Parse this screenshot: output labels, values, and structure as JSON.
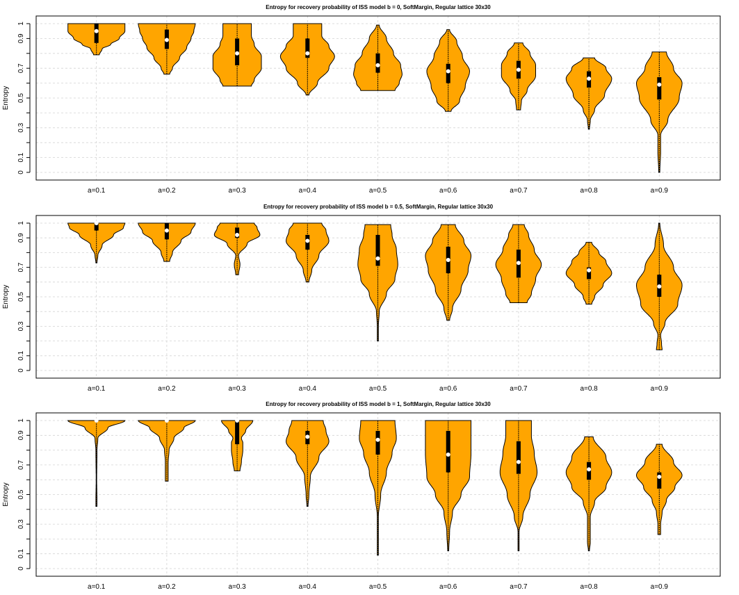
{
  "colors": {
    "violin_fill": "#FFA500",
    "outline": "#000000",
    "grid": "#d3d3d3",
    "median": "#ffffff"
  },
  "chart_data": [
    {
      "type": "violin",
      "title": "Entropy for recovery probability of ISS model b = 0, SoftMargin, Regular lattice 30x30",
      "ylabel": "Entropy",
      "categories": [
        "a=0.1",
        "a=0.2",
        "a=0.3",
        "a=0.4",
        "a=0.5",
        "a=0.6",
        "a=0.7",
        "a=0.8",
        "a=0.9"
      ],
      "ylim": [
        0,
        1
      ],
      "yticks": [
        "0",
        "0.1",
        "0.3",
        "0.5",
        "0.7",
        "0.9",
        "1"
      ],
      "grid": true,
      "series": [
        {
          "min": 0.79,
          "max": 1.0,
          "q1": 0.87,
          "median": 0.95,
          "q3": 1.0,
          "w": [
            [
              0.79,
              0.1
            ],
            [
              0.83,
              0.2
            ],
            [
              0.86,
              0.5
            ],
            [
              0.9,
              0.8
            ],
            [
              0.95,
              1.0
            ],
            [
              1.0,
              1.0
            ]
          ]
        },
        {
          "min": 0.66,
          "max": 1.0,
          "q1": 0.83,
          "median": 0.89,
          "q3": 0.96,
          "w": [
            [
              0.66,
              0.1
            ],
            [
              0.7,
              0.2
            ],
            [
              0.77,
              0.45
            ],
            [
              0.84,
              0.7
            ],
            [
              0.9,
              0.85
            ],
            [
              0.95,
              0.95
            ],
            [
              1.0,
              1.0
            ]
          ]
        },
        {
          "min": 0.58,
          "max": 1.0,
          "q1": 0.72,
          "median": 0.8,
          "q3": 0.9,
          "w": [
            [
              0.58,
              0.5
            ],
            [
              0.62,
              0.6
            ],
            [
              0.7,
              0.85
            ],
            [
              0.78,
              0.85
            ],
            [
              0.86,
              0.6
            ],
            [
              0.92,
              0.5
            ],
            [
              1.0,
              0.5
            ]
          ]
        },
        {
          "min": 0.52,
          "max": 1.0,
          "q1": 0.77,
          "median": 0.8,
          "q3": 0.9,
          "w": [
            [
              0.52,
              0.05
            ],
            [
              0.6,
              0.35
            ],
            [
              0.7,
              0.75
            ],
            [
              0.78,
              0.95
            ],
            [
              0.85,
              0.75
            ],
            [
              0.92,
              0.5
            ],
            [
              1.0,
              0.5
            ]
          ]
        },
        {
          "min": 0.55,
          "max": 0.99,
          "q1": 0.67,
          "median": 0.72,
          "q3": 0.8,
          "w": [
            [
              0.55,
              0.6
            ],
            [
              0.6,
              0.75
            ],
            [
              0.66,
              0.85
            ],
            [
              0.72,
              0.8
            ],
            [
              0.8,
              0.55
            ],
            [
              0.9,
              0.3
            ],
            [
              0.99,
              0.05
            ]
          ]
        },
        {
          "min": 0.41,
          "max": 0.96,
          "q1": 0.6,
          "median": 0.68,
          "q3": 0.73,
          "w": [
            [
              0.41,
              0.1
            ],
            [
              0.48,
              0.4
            ],
            [
              0.58,
              0.6
            ],
            [
              0.68,
              0.75
            ],
            [
              0.78,
              0.5
            ],
            [
              0.88,
              0.3
            ],
            [
              0.96,
              0.05
            ]
          ]
        },
        {
          "min": 0.42,
          "max": 0.87,
          "q1": 0.63,
          "median": 0.69,
          "q3": 0.75,
          "w": [
            [
              0.42,
              0.07
            ],
            [
              0.48,
              0.1
            ],
            [
              0.55,
              0.3
            ],
            [
              0.65,
              0.6
            ],
            [
              0.72,
              0.6
            ],
            [
              0.8,
              0.4
            ],
            [
              0.87,
              0.15
            ]
          ]
        },
        {
          "min": 0.29,
          "max": 0.77,
          "q1": 0.57,
          "median": 0.63,
          "q3": 0.68,
          "w": [
            [
              0.29,
              0.02
            ],
            [
              0.35,
              0.05
            ],
            [
              0.42,
              0.2
            ],
            [
              0.52,
              0.55
            ],
            [
              0.63,
              0.8
            ],
            [
              0.7,
              0.6
            ],
            [
              0.77,
              0.2
            ]
          ]
        },
        {
          "min": 0.0,
          "max": 0.81,
          "q1": 0.49,
          "median": 0.59,
          "q3": 0.64,
          "w": [
            [
              0.0,
              0.02
            ],
            [
              0.15,
              0.05
            ],
            [
              0.25,
              0.05
            ],
            [
              0.35,
              0.3
            ],
            [
              0.5,
              0.7
            ],
            [
              0.6,
              0.8
            ],
            [
              0.7,
              0.5
            ],
            [
              0.81,
              0.25
            ]
          ]
        }
      ]
    },
    {
      "type": "violin",
      "title": "Entropy for recovery probability of ISS model b = 0.5, SoftMargin, Regular lattice 30x30",
      "ylabel": "Entropy",
      "categories": [
        "a=0.1",
        "a=0.2",
        "a=0.3",
        "a=0.4",
        "a=0.5",
        "a=0.6",
        "a=0.7",
        "a=0.8",
        "a=0.9"
      ],
      "ylim": [
        0,
        1
      ],
      "yticks": [
        "0",
        "0.1",
        "0.3",
        "0.5",
        "0.7",
        "0.9",
        "1"
      ],
      "grid": true,
      "series": [
        {
          "min": 0.73,
          "max": 1.0,
          "q1": 0.95,
          "median": 1.0,
          "q3": 1.0,
          "w": [
            [
              0.73,
              0.02
            ],
            [
              0.78,
              0.05
            ],
            [
              0.85,
              0.2
            ],
            [
              0.92,
              0.6
            ],
            [
              0.97,
              0.95
            ],
            [
              1.0,
              1.0
            ]
          ]
        },
        {
          "min": 0.74,
          "max": 1.0,
          "q1": 0.89,
          "median": 0.95,
          "q3": 1.0,
          "w": [
            [
              0.74,
              0.1
            ],
            [
              0.8,
              0.2
            ],
            [
              0.88,
              0.5
            ],
            [
              0.94,
              0.85
            ],
            [
              1.0,
              1.0
            ]
          ]
        },
        {
          "min": 0.65,
          "max": 1.0,
          "q1": 0.9,
          "median": 0.92,
          "q3": 0.97,
          "w": [
            [
              0.65,
              0.05
            ],
            [
              0.72,
              0.1
            ],
            [
              0.78,
              0.05
            ],
            [
              0.86,
              0.35
            ],
            [
              0.92,
              0.8
            ],
            [
              0.97,
              0.7
            ],
            [
              1.0,
              0.6
            ]
          ]
        },
        {
          "min": 0.6,
          "max": 1.0,
          "q1": 0.82,
          "median": 0.88,
          "q3": 0.92,
          "w": [
            [
              0.6,
              0.05
            ],
            [
              0.68,
              0.15
            ],
            [
              0.78,
              0.4
            ],
            [
              0.88,
              0.75
            ],
            [
              0.95,
              0.65
            ],
            [
              1.0,
              0.5
            ]
          ]
        },
        {
          "min": 0.2,
          "max": 0.99,
          "q1": 0.71,
          "median": 0.76,
          "q3": 0.92,
          "w": [
            [
              0.2,
              0.02
            ],
            [
              0.3,
              0.02
            ],
            [
              0.4,
              0.05
            ],
            [
              0.52,
              0.3
            ],
            [
              0.62,
              0.6
            ],
            [
              0.72,
              0.7
            ],
            [
              0.82,
              0.65
            ],
            [
              0.92,
              0.5
            ],
            [
              0.99,
              0.45
            ]
          ]
        },
        {
          "min": 0.34,
          "max": 0.99,
          "q1": 0.66,
          "median": 0.75,
          "q3": 0.84,
          "w": [
            [
              0.34,
              0.05
            ],
            [
              0.42,
              0.15
            ],
            [
              0.55,
              0.45
            ],
            [
              0.68,
              0.7
            ],
            [
              0.78,
              0.8
            ],
            [
              0.88,
              0.55
            ],
            [
              0.99,
              0.25
            ]
          ]
        },
        {
          "min": 0.46,
          "max": 0.99,
          "q1": 0.63,
          "median": 0.73,
          "q3": 0.82,
          "w": [
            [
              0.46,
              0.3
            ],
            [
              0.52,
              0.45
            ],
            [
              0.62,
              0.6
            ],
            [
              0.72,
              0.8
            ],
            [
              0.82,
              0.55
            ],
            [
              0.92,
              0.35
            ],
            [
              0.99,
              0.2
            ]
          ]
        },
        {
          "min": 0.45,
          "max": 0.87,
          "q1": 0.62,
          "median": 0.68,
          "q3": 0.7,
          "w": [
            [
              0.45,
              0.1
            ],
            [
              0.5,
              0.2
            ],
            [
              0.58,
              0.5
            ],
            [
              0.66,
              0.8
            ],
            [
              0.74,
              0.6
            ],
            [
              0.8,
              0.35
            ],
            [
              0.87,
              0.1
            ]
          ]
        },
        {
          "min": 0.14,
          "max": 1.0,
          "q1": 0.5,
          "median": 0.57,
          "q3": 0.65,
          "w": [
            [
              0.14,
              0.1
            ],
            [
              0.18,
              0.08
            ],
            [
              0.24,
              0.05
            ],
            [
              0.32,
              0.2
            ],
            [
              0.45,
              0.65
            ],
            [
              0.58,
              0.8
            ],
            [
              0.7,
              0.5
            ],
            [
              0.85,
              0.15
            ],
            [
              1.0,
              0.02
            ]
          ]
        }
      ]
    },
    {
      "type": "violin",
      "title": "Entropy for recovery probability of ISS model b = 1, SoftMargin, Regular lattice 30x30",
      "ylabel": "Entropy",
      "categories": [
        "a=0.1",
        "a=0.2",
        "a=0.3",
        "a=0.4",
        "a=0.5",
        "a=0.6",
        "a=0.7",
        "a=0.8",
        "a=0.9"
      ],
      "ylim": [
        0,
        1
      ],
      "yticks": [
        "0",
        "0.1",
        "0.3",
        "0.5",
        "0.7",
        "0.9",
        "1"
      ],
      "grid": true,
      "series": [
        {
          "min": 0.42,
          "max": 1.0,
          "q1": 1.0,
          "median": 1.0,
          "q3": 1.0,
          "w": [
            [
              0.42,
              0.02
            ],
            [
              0.45,
              0.02
            ],
            [
              0.6,
              0.01
            ],
            [
              0.8,
              0.02
            ],
            [
              0.88,
              0.05
            ],
            [
              0.95,
              0.4
            ],
            [
              1.0,
              1.0
            ]
          ]
        },
        {
          "min": 0.59,
          "max": 1.0,
          "q1": 1.0,
          "median": 1.0,
          "q3": 1.0,
          "w": [
            [
              0.59,
              0.05
            ],
            [
              0.65,
              0.05
            ],
            [
              0.72,
              0.05
            ],
            [
              0.8,
              0.08
            ],
            [
              0.88,
              0.25
            ],
            [
              0.95,
              0.6
            ],
            [
              1.0,
              1.0
            ]
          ]
        },
        {
          "min": 0.66,
          "max": 1.0,
          "q1": 0.84,
          "median": 1.0,
          "q3": 1.0,
          "w": [
            [
              0.66,
              0.1
            ],
            [
              0.72,
              0.15
            ],
            [
              0.8,
              0.2
            ],
            [
              0.85,
              0.2
            ],
            [
              0.88,
              0.15
            ],
            [
              0.93,
              0.3
            ],
            [
              1.0,
              0.55
            ]
          ]
        },
        {
          "min": 0.42,
          "max": 1.0,
          "q1": 0.84,
          "median": 0.89,
          "q3": 0.93,
          "w": [
            [
              0.42,
              0.02
            ],
            [
              0.5,
              0.05
            ],
            [
              0.62,
              0.1
            ],
            [
              0.75,
              0.4
            ],
            [
              0.86,
              0.75
            ],
            [
              0.93,
              0.65
            ],
            [
              1.0,
              0.55
            ]
          ]
        },
        {
          "min": 0.09,
          "max": 1.0,
          "q1": 0.77,
          "median": 0.87,
          "q3": 0.93,
          "w": [
            [
              0.09,
              0.02
            ],
            [
              0.2,
              0.02
            ],
            [
              0.35,
              0.02
            ],
            [
              0.5,
              0.1
            ],
            [
              0.65,
              0.3
            ],
            [
              0.78,
              0.5
            ],
            [
              0.88,
              0.65
            ],
            [
              1.0,
              0.6
            ]
          ]
        },
        {
          "min": 0.12,
          "max": 1.0,
          "q1": 0.65,
          "median": 0.77,
          "q3": 0.93,
          "w": [
            [
              0.12,
              0.02
            ],
            [
              0.25,
              0.05
            ],
            [
              0.38,
              0.15
            ],
            [
              0.5,
              0.45
            ],
            [
              0.62,
              0.75
            ],
            [
              0.78,
              0.8
            ],
            [
              0.9,
              0.8
            ],
            [
              1.0,
              0.8
            ]
          ]
        },
        {
          "min": 0.12,
          "max": 1.0,
          "q1": 0.64,
          "median": 0.72,
          "q3": 0.86,
          "w": [
            [
              0.12,
              0.02
            ],
            [
              0.25,
              0.02
            ],
            [
              0.35,
              0.15
            ],
            [
              0.5,
              0.4
            ],
            [
              0.65,
              0.65
            ],
            [
              0.78,
              0.55
            ],
            [
              0.9,
              0.45
            ],
            [
              1.0,
              0.45
            ]
          ]
        },
        {
          "min": 0.12,
          "max": 0.89,
          "q1": 0.6,
          "median": 0.67,
          "q3": 0.72,
          "w": [
            [
              0.12,
              0.02
            ],
            [
              0.18,
              0.05
            ],
            [
              0.25,
              0.05
            ],
            [
              0.35,
              0.05
            ],
            [
              0.45,
              0.2
            ],
            [
              0.55,
              0.6
            ],
            [
              0.65,
              0.8
            ],
            [
              0.75,
              0.6
            ],
            [
              0.89,
              0.15
            ]
          ]
        },
        {
          "min": 0.23,
          "max": 0.84,
          "q1": 0.54,
          "median": 0.62,
          "q3": 0.65,
          "w": [
            [
              0.23,
              0.05
            ],
            [
              0.3,
              0.05
            ],
            [
              0.38,
              0.1
            ],
            [
              0.46,
              0.25
            ],
            [
              0.55,
              0.55
            ],
            [
              0.63,
              0.8
            ],
            [
              0.72,
              0.5
            ],
            [
              0.84,
              0.1
            ]
          ]
        }
      ]
    }
  ]
}
